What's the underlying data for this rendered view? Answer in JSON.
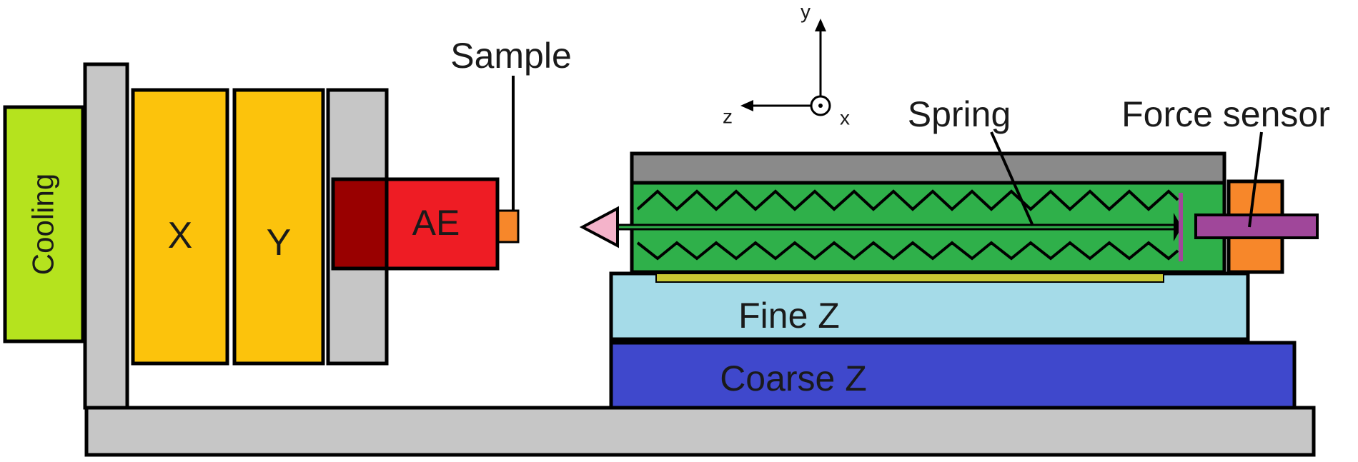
{
  "labels": {
    "cooling": "Cooling",
    "x_stage": "X",
    "y_stage": "Y",
    "ae": "AE",
    "sample": "Sample",
    "spring": "Spring",
    "force_sensor": "Force sensor",
    "fine_z": "Fine Z",
    "coarse_z": "Coarse Z"
  },
  "axes": {
    "y": "y",
    "z": "z",
    "x": "x"
  },
  "colors": {
    "cooling": "#b5e31e",
    "stage": "#fcc30c",
    "frame": "#c6c6c6",
    "ae_mount": "#990000",
    "ae": "#ee1c24",
    "sample": "#f7872a",
    "spring_housing": "#2fb04a",
    "housing_top": "#8a8a8a",
    "tip": "#f4b3ca",
    "force_sensor": "#f7872a",
    "sensor_rod": "#a0479a",
    "fine_z": "#a5dbe8",
    "coarse_z": "#3f48cc",
    "pad": "#c8c832"
  }
}
